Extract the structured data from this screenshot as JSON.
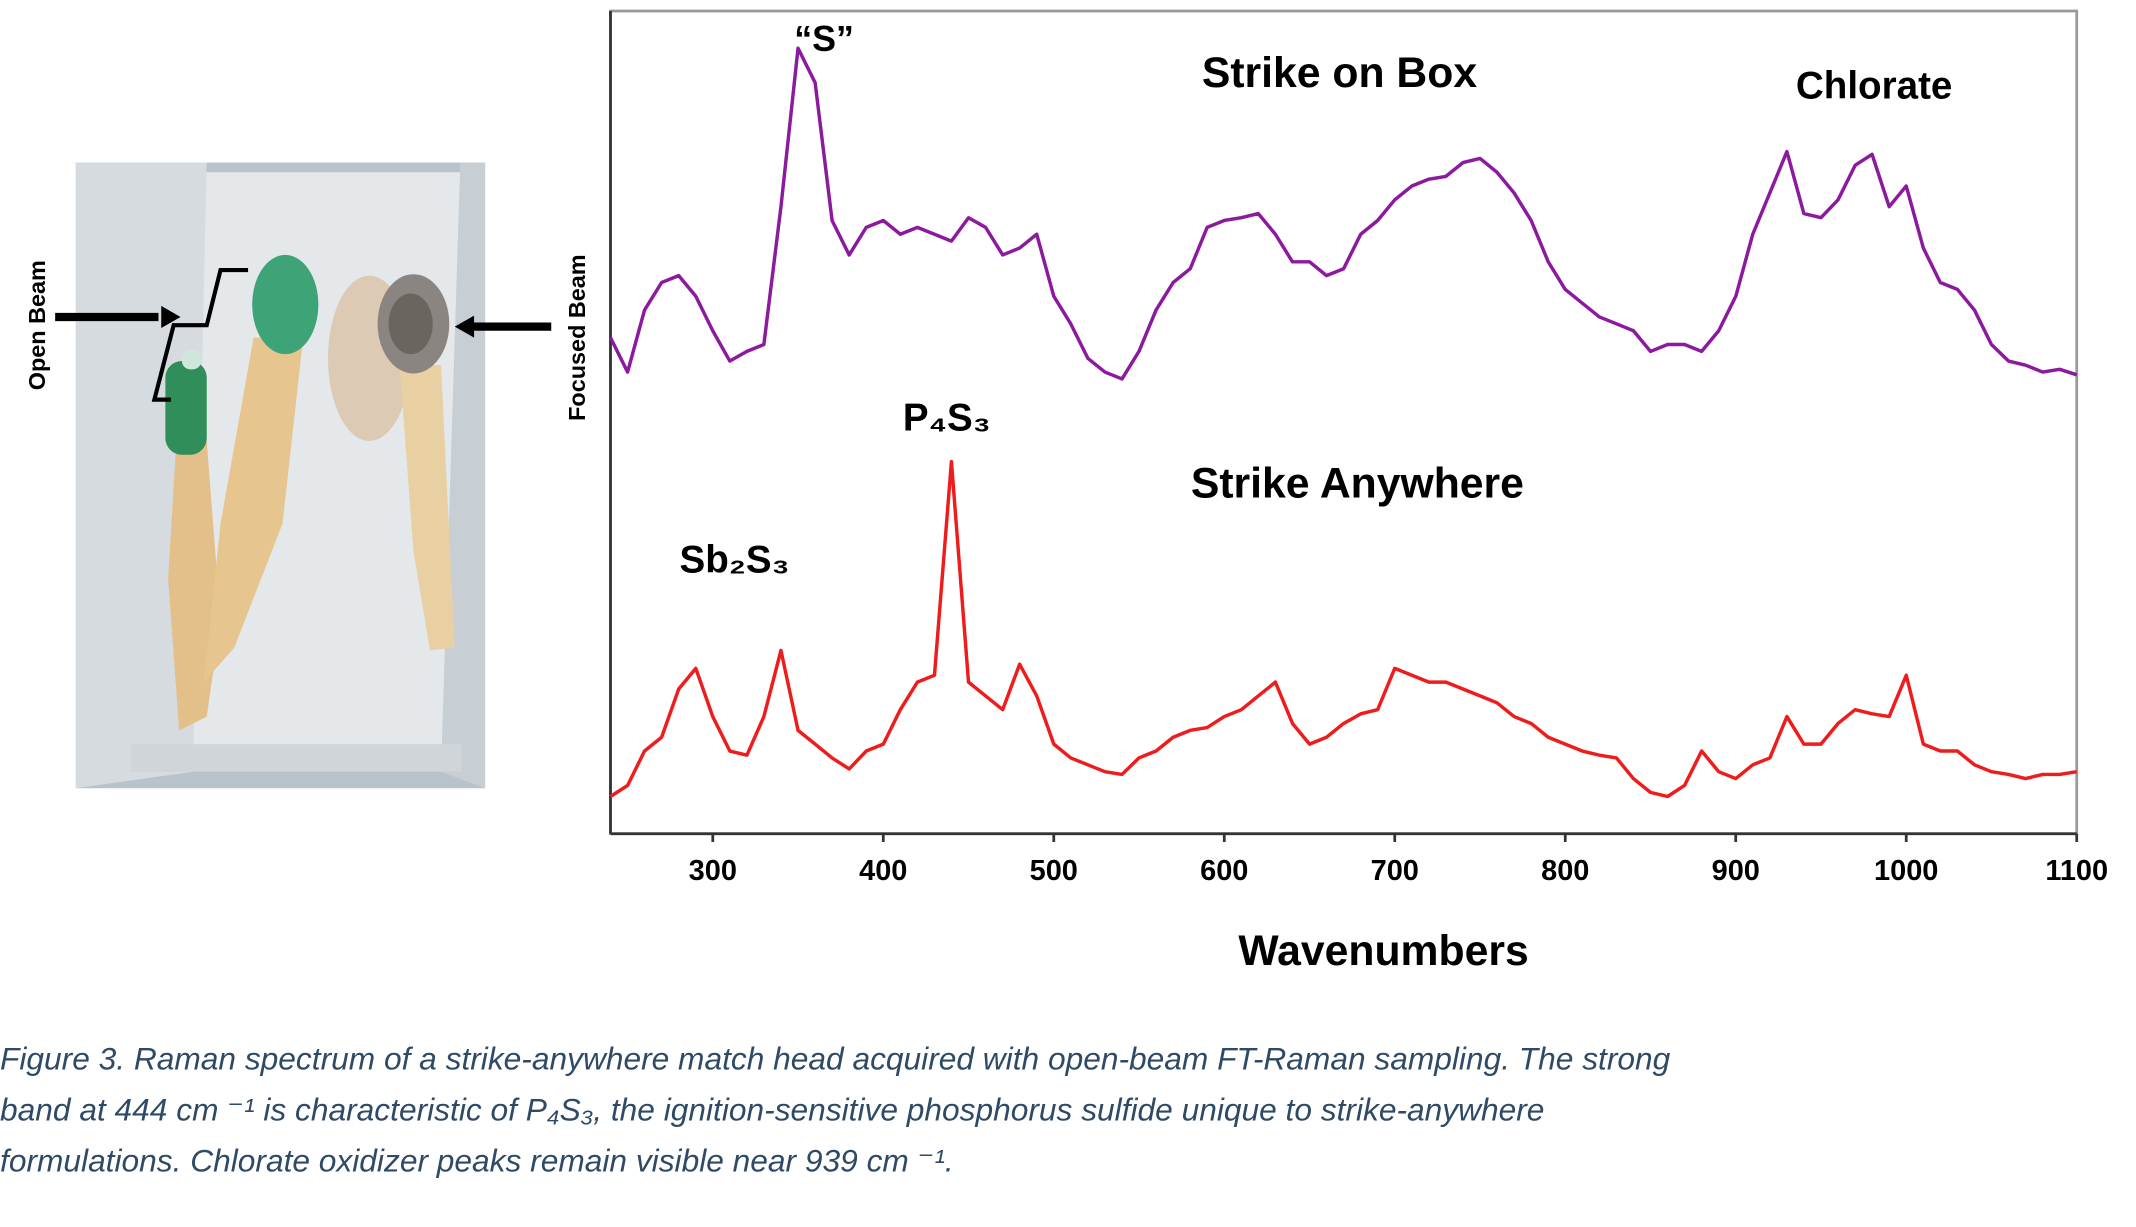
{
  "chart_data": {
    "type": "line",
    "y_label": "Focused Beam",
    "x_label": "Wavenumbers",
    "photo_label": "Open Beam",
    "annotations": [
      "“S”",
      "Strike on Box",
      "Chlorate",
      "P₄S₃",
      "Strike Anywhere",
      "Sb₂S₃"
    ],
    "x": [
      240,
      250,
      260,
      270,
      280,
      290,
      300,
      310,
      320,
      330,
      340,
      350,
      360,
      370,
      380,
      390,
      400,
      410,
      420,
      430,
      440,
      450,
      460,
      470,
      480,
      490,
      500,
      510,
      520,
      530,
      540,
      550,
      560,
      570,
      580,
      590,
      600,
      610,
      620,
      630,
      640,
      650,
      660,
      670,
      680,
      690,
      700,
      710,
      720,
      730,
      740,
      750,
      760,
      770,
      780,
      790,
      800,
      810,
      820,
      830,
      840,
      850,
      860,
      870,
      880,
      890,
      900,
      910,
      920,
      930,
      940,
      950,
      960,
      970,
      980,
      990,
      1000,
      1010,
      1020,
      1030,
      1040,
      1050,
      1060,
      1070,
      1080,
      1090,
      1100
    ],
    "series": [
      {
        "name": "Strike on Box",
        "color": "#8b1a9e",
        "values": [
          360,
          335,
          380,
          400,
          405,
          390,
          365,
          343,
          350,
          355,
          455,
          570,
          545,
          445,
          420,
          440,
          445,
          435,
          440,
          435,
          430,
          447,
          440,
          420,
          425,
          435,
          390,
          370,
          345,
          335,
          330,
          350,
          380,
          400,
          410,
          440,
          445,
          447,
          450,
          435,
          415,
          415,
          405,
          410,
          435,
          445,
          460,
          470,
          475,
          477,
          487,
          490,
          480,
          465,
          445,
          415,
          395,
          385,
          375,
          370,
          365,
          350,
          355,
          355,
          350,
          365,
          390,
          435,
          465,
          495,
          450,
          447,
          460,
          485,
          493,
          455,
          470,
          425,
          400,
          395,
          380,
          355,
          343,
          340,
          335,
          337,
          333
        ]
      },
      {
        "name": "Strike Anywhere",
        "color": "#ee1c1c",
        "values": [
          27,
          35,
          60,
          70,
          105,
          120,
          85,
          60,
          57,
          85,
          133,
          75,
          65,
          55,
          47,
          60,
          65,
          90,
          110,
          115,
          270,
          110,
          100,
          90,
          123,
          100,
          65,
          55,
          50,
          45,
          43,
          55,
          60,
          70,
          75,
          77,
          85,
          90,
          100,
          110,
          80,
          65,
          70,
          80,
          87,
          90,
          120,
          115,
          110,
          110,
          105,
          100,
          95,
          85,
          80,
          70,
          65,
          60,
          57,
          55,
          40,
          30,
          27,
          35,
          60,
          45,
          40,
          50,
          55,
          85,
          65,
          65,
          80,
          90,
          87,
          85,
          115,
          65,
          60,
          60,
          50,
          45,
          43,
          40,
          43,
          43,
          45
        ]
      }
    ],
    "xlim": [
      240,
      1100
    ],
    "ylim": [
      0,
      597
    ],
    "xticks": [
      300,
      400,
      500,
      600,
      700,
      800,
      900,
      1000,
      1100
    ],
    "grid": false
  },
  "caption": [
    "Figure 3. Raman spectrum of a strike-anywhere match head acquired with open-beam FT-Raman sampling. The strong",
    "band at 444 cm ⁻¹ is characteristic of P₄S₃, the ignition-sensitive phosphorus sulfide unique to strike-anywhere",
    "formulations. Chlorate oxidizer peaks remain visible near 939 cm ⁻¹."
  ]
}
